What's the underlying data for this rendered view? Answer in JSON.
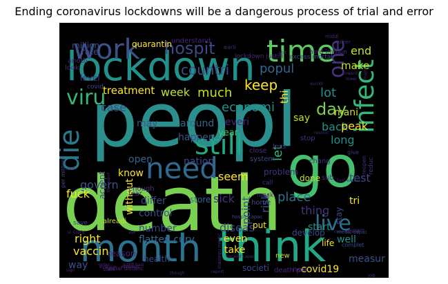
{
  "title": "Ending coronavirus lockdowns will be a dangerous process of trial and error",
  "wordcloud": {
    "background": "#000000",
    "words": [
      {
        "text": "peopl",
        "color": "#2a8f8d"
      },
      {
        "text": "death",
        "color": "#7ad151"
      },
      {
        "text": "go",
        "color": "#44bf70"
      },
      {
        "text": "lockdown",
        "color": "#21918c"
      },
      {
        "text": "month",
        "color": "#2c728e"
      },
      {
        "text": "think",
        "color": "#22a884"
      },
      {
        "text": "time",
        "color": "#5ec962"
      },
      {
        "text": "work",
        "color": "#3b528b"
      },
      {
        "text": "need",
        "color": "#31688e"
      },
      {
        "text": "still",
        "color": "#22a884"
      },
      {
        "text": "die",
        "color": "#2a788e"
      },
      {
        "text": "infect",
        "color": "#35b779"
      },
      {
        "text": "live",
        "color": "#2c728e"
      },
      {
        "text": "hospit",
        "color": "#3e4989"
      },
      {
        "text": "viru",
        "color": "#35b779"
      },
      {
        "text": "day",
        "color": "#7ad151"
      },
      {
        "text": "one",
        "color": "#46327e"
      },
      {
        "text": "countri",
        "color": "#3b528b"
      },
      {
        "text": "popul",
        "color": "#31688e"
      },
      {
        "text": "keep",
        "color": "#fde725"
      },
      {
        "text": "economi",
        "color": "#21918c"
      },
      {
        "text": "end",
        "color": "#c8e020"
      },
      {
        "text": "make",
        "color": "#c8e020"
      },
      {
        "text": "lot",
        "color": "#21918c"
      },
      {
        "text": "much",
        "color": "#c8e020"
      },
      {
        "text": "week",
        "color": "#c8e020"
      },
      {
        "text": "treatment",
        "color": "#fde725"
      },
      {
        "text": "case",
        "color": "#3e4989"
      },
      {
        "text": "level",
        "color": "#46327e"
      },
      {
        "text": "rate",
        "color": "#3e4989"
      },
      {
        "text": "million",
        "color": "#3e4989"
      },
      {
        "text": "quarantin",
        "color": "#fde725"
      },
      {
        "text": "thi",
        "color": "#fde725"
      },
      {
        "text": "back",
        "color": "#21918c"
      },
      {
        "text": "long",
        "color": "#21918c"
      },
      {
        "text": "say",
        "color": "#c8e020"
      },
      {
        "text": "may",
        "color": "#3b528b"
      },
      {
        "text": "around",
        "color": "#31688e"
      },
      {
        "text": "everi",
        "color": "#482878"
      },
      {
        "text": "happen",
        "color": "#3b528b"
      },
      {
        "text": "year",
        "color": "#44bf70"
      },
      {
        "text": "mani",
        "color": "#c8e020"
      },
      {
        "text": "open",
        "color": "#31688e"
      },
      {
        "text": "nation",
        "color": "#3e4989"
      },
      {
        "text": "know",
        "color": "#fde725"
      },
      {
        "text": "seem",
        "color": "#fde725"
      },
      {
        "text": "govern",
        "color": "#3b528b"
      },
      {
        "text": "fuck",
        "color": "#fde725"
      },
      {
        "text": "accept",
        "color": "#3e4989"
      },
      {
        "text": "place",
        "color": "#2c728e"
      },
      {
        "text": "let",
        "color": "#35b779"
      },
      {
        "text": "test",
        "color": "#3e4989"
      },
      {
        "text": "peak",
        "color": "#fde725"
      },
      {
        "text": "thing",
        "color": "#46327e"
      },
      {
        "text": "tri",
        "color": "#fde725"
      },
      {
        "text": "stay",
        "color": "#3e4989"
      },
      {
        "text": "risk",
        "color": "#3b528b"
      },
      {
        "text": "point",
        "color": "#3b528b"
      },
      {
        "text": "sick",
        "color": "#46327e"
      },
      {
        "text": "differ",
        "color": "#3e4989"
      },
      {
        "text": "store",
        "color": "#31688e"
      },
      {
        "text": "without",
        "color": "#fde725"
      },
      {
        "text": "control",
        "color": "#3e4989"
      },
      {
        "text": "number",
        "color": "#3e4989"
      },
      {
        "text": "flatten curv",
        "color": "#31688e"
      },
      {
        "text": "diseas",
        "color": "#3e4989"
      },
      {
        "text": "right",
        "color": "#fde725"
      },
      {
        "text": "vaccin",
        "color": "#fde725"
      },
      {
        "text": "way",
        "color": "#3b528b"
      },
      {
        "text": "even",
        "color": "#fde725"
      },
      {
        "text": "put",
        "color": "#fde725"
      },
      {
        "text": "develop",
        "color": "#3e4989"
      },
      {
        "text": "start",
        "color": "#21918c"
      },
      {
        "text": "well",
        "color": "#21918c"
      },
      {
        "text": "measur",
        "color": "#3b528b"
      },
      {
        "text": "life",
        "color": "#fde725"
      },
      {
        "text": "take",
        "color": "#fde725"
      },
      {
        "text": "health",
        "color": "#3e4989"
      },
      {
        "text": "reason",
        "color": "#482878"
      },
      {
        "text": "societi",
        "color": "#3e4989"
      },
      {
        "text": "death per",
        "color": "#482878"
      },
      {
        "text": "covid19",
        "color": "#fde725"
      },
      {
        "text": "new",
        "color": "#c8e020"
      },
      {
        "text": "problem",
        "color": "#46327e"
      },
      {
        "text": "done",
        "color": "#c8e020"
      },
      {
        "text": "lockdown justifi",
        "color": "#482878"
      },
      {
        "text": "excess mortal",
        "color": "#3e4989"
      },
      {
        "text": "shit",
        "color": "#482878"
      },
      {
        "text": "herd immun",
        "color": "#482878"
      },
      {
        "text": "understand",
        "color": "#482878"
      },
      {
        "text": "covid",
        "color": "#3e4989"
      },
      {
        "text": "earli",
        "color": "#482878"
      },
      {
        "text": "anoth",
        "color": "#482878"
      },
      {
        "text": "look",
        "color": "#482878"
      },
      {
        "text": "alreadi",
        "color": "#c8e020"
      },
      {
        "text": "enough",
        "color": "#46327e"
      },
      {
        "text": "save",
        "color": "#3e4989"
      },
      {
        "text": "fear",
        "color": "#46327e"
      },
      {
        "text": "system",
        "color": "#3e4989"
      },
      {
        "text": "less",
        "color": "#46327e"
      },
      {
        "text": "call",
        "color": "#46327e"
      },
      {
        "text": "sub",
        "color": "#46327e"
      },
      {
        "text": "give",
        "color": "#46327e"
      },
      {
        "text": "reopen",
        "color": "#46327e"
      },
      {
        "text": "chang",
        "color": "#46327e"
      },
      {
        "text": "close",
        "color": "#46327e"
      },
      {
        "text": "stop",
        "color": "#46327e"
      },
      {
        "text": "reduc",
        "color": "#46327e"
      },
      {
        "text": "next",
        "color": "#482878"
      },
      {
        "text": "home",
        "color": "#3e4989"
      },
      {
        "text": "mask",
        "color": "#46327e"
      },
      {
        "text": "u curv",
        "color": "#482878"
      },
      {
        "text": "per million",
        "color": "#3e4989"
      },
      {
        "text": "hospit capac",
        "color": "#3e4989"
      },
      {
        "text": "medic capac",
        "color": "#3e4989"
      },
      {
        "text": "social distanc",
        "color": "#482878"
      },
      {
        "text": "justifi basi",
        "color": "#482878"
      },
      {
        "text": "curv exceed",
        "color": "#482878"
      },
      {
        "text": "complet",
        "color": "#3e4989"
      },
      {
        "text": "vulner",
        "color": "#482878"
      },
      {
        "text": "resourc",
        "color": "#482878"
      },
      {
        "text": "job",
        "color": "#482878"
      },
      {
        "text": "state",
        "color": "#482878"
      },
      {
        "text": "report",
        "color": "#482878"
      },
      {
        "text": "quickli",
        "color": "#482878"
      },
      {
        "text": "toward",
        "color": "#482878"
      },
      {
        "text": "lower",
        "color": "#482878"
      },
      {
        "text": "middl",
        "color": "#482878"
      },
      {
        "text": "major",
        "color": "#482878"
      },
      {
        "text": "exceed capac",
        "color": "#482878"
      },
      {
        "text": "inadequ medic",
        "color": "#482878"
      },
      {
        "text": "though",
        "color": "#482878"
      },
      {
        "text": "order",
        "color": "#482878"
      },
      {
        "text": "everyon",
        "color": "#482878"
      },
      {
        "text": "econom",
        "color": "#482878"
      },
      {
        "text": "thousand",
        "color": "#482878"
      },
      {
        "text": "crazi",
        "color": "#482878"
      },
      {
        "text": "basi excess",
        "color": "#482878"
      },
      {
        "text": "otherwis",
        "color": "#482878"
      },
      {
        "text": "ask",
        "color": "#482878"
      },
      {
        "text": "sign",
        "color": "#482878"
      }
    ]
  }
}
